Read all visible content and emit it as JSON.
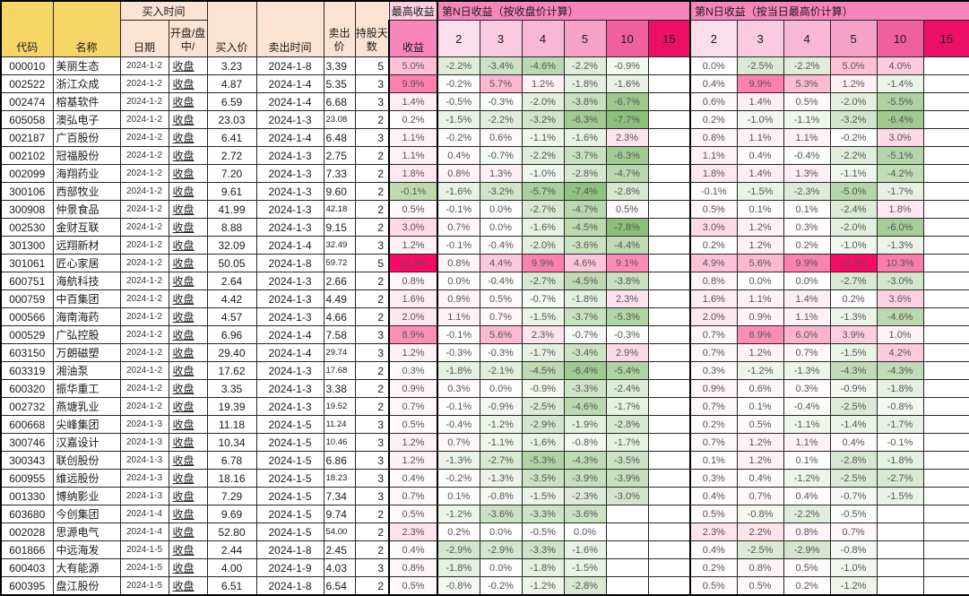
{
  "header": {
    "col_code": "代码",
    "col_name": "名称",
    "buy_time_group": "买入时间",
    "col_date": "日期",
    "col_session": "开盘/盘中/",
    "col_buy_price": "买入价",
    "col_sell_time": "卖出时间",
    "col_sell_price": "卖出价",
    "col_hold_days": "持股天数",
    "max_return_group": "最高收益",
    "col_return": "收益",
    "close_group": "第N日收益（按收盘价计算）",
    "high_group": "第N日收益（按当日最高价计算）",
    "day_cols": [
      "2",
      "3",
      "4",
      "5",
      "10",
      "15"
    ]
  },
  "colors": {
    "header_yellow": "#F6D666",
    "header_peach": "#FBE3D3",
    "header_pink_light": "#FBCFE2",
    "header_pink": "#F886BC",
    "day_col_colors": [
      "#FBDEEC",
      "#FACBE0",
      "#F8B7D4",
      "#F6A2C7",
      "#F0609F",
      "#EB1065"
    ],
    "grid": "#262626"
  },
  "color_scale": {
    "positive_max_color": "#FA0A64",
    "negative_max_color": "#8CBF7B",
    "return_negative_color": "#BFDBAD",
    "positive_limit": 19.3,
    "negative_limit": 7.8
  },
  "rows": [
    {
      "code": "000010",
      "name": "美丽生态",
      "date": "2024-1-2",
      "session": "收盘",
      "buy": "3.23",
      "sell_date": "2024-1-8",
      "sell": "3.39",
      "days": "5",
      "ret": "5.0%",
      "close": [
        "-2.2%",
        "-3.4%",
        "-4.6%",
        "-2.2%",
        "-0.9%",
        ""
      ],
      "high": [
        "0.0%",
        "-2.5%",
        "-2.2%",
        "5.0%",
        "4.0%",
        ""
      ]
    },
    {
      "code": "002522",
      "name": "浙江众成",
      "date": "2024-1-2",
      "session": "收盘",
      "buy": "4.87",
      "sell_date": "2024-1-4",
      "sell": "5.35",
      "days": "3",
      "ret": "9.9%",
      "close": [
        "-0.2%",
        "5.7%",
        "1.2%",
        "-1.8%",
        "-1.6%",
        ""
      ],
      "high": [
        "0.4%",
        "9.9%",
        "5.3%",
        "1.2%",
        "-1.4%",
        ""
      ]
    },
    {
      "code": "002474",
      "name": "榕基软件",
      "date": "2024-1-2",
      "session": "收盘",
      "buy": "6.59",
      "sell_date": "2024-1-4",
      "sell": "6.68",
      "days": "3",
      "ret": "1.4%",
      "close": [
        "-0.5%",
        "-0.3%",
        "-2.0%",
        "-3.8%",
        "-6.7%",
        ""
      ],
      "high": [
        "0.6%",
        "1.4%",
        "0.5%",
        "-2.0%",
        "-5.5%",
        ""
      ]
    },
    {
      "code": "605058",
      "name": "澳弘电子",
      "date": "2024-1-2",
      "session": "收盘",
      "buy": "23.03",
      "sell_date": "2024-1-3",
      "sell": "23.08",
      "days": "2",
      "ret": "0.2%",
      "close": [
        "-1.5%",
        "-2.2%",
        "-3.2%",
        "-6.3%",
        "-7.7%",
        ""
      ],
      "high": [
        "0.2%",
        "-1.0%",
        "-1.1%",
        "-3.2%",
        "-6.4%",
        ""
      ]
    },
    {
      "code": "002187",
      "name": "广百股份",
      "date": "2024-1-2",
      "session": "收盘",
      "buy": "6.41",
      "sell_date": "2024-1-4",
      "sell": "6.48",
      "days": "3",
      "ret": "1.1%",
      "close": [
        "-0.2%",
        "0.6%",
        "-1.1%",
        "-1.6%",
        "2.3%",
        ""
      ],
      "high": [
        "0.8%",
        "1.1%",
        "1.1%",
        "-0.2%",
        "3.0%",
        ""
      ]
    },
    {
      "code": "002102",
      "name": "冠福股份",
      "date": "2024-1-2",
      "session": "收盘",
      "buy": "2.72",
      "sell_date": "2024-1-3",
      "sell": "2.75",
      "days": "2",
      "ret": "1.1%",
      "close": [
        "0.4%",
        "-0.7%",
        "-2.2%",
        "-3.7%",
        "-6.3%",
        ""
      ],
      "high": [
        "1.1%",
        "0.4%",
        "-0.4%",
        "-2.2%",
        "-5.1%",
        ""
      ]
    },
    {
      "code": "002099",
      "name": "海翔药业",
      "date": "2024-1-2",
      "session": "收盘",
      "buy": "7.20",
      "sell_date": "2024-1-3",
      "sell": "7.33",
      "days": "2",
      "ret": "1.8%",
      "close": [
        "0.8%",
        "1.3%",
        "-1.0%",
        "-2.8%",
        "-4.7%",
        ""
      ],
      "high": [
        "1.8%",
        "1.4%",
        "1.3%",
        "-1.1%",
        "-4.2%",
        ""
      ]
    },
    {
      "code": "300106",
      "name": "西部牧业",
      "date": "2024-1-2",
      "session": "收盘",
      "buy": "9.61",
      "sell_date": "2024-1-3",
      "sell": "9.60",
      "days": "2",
      "ret": "-0.1%",
      "close": [
        "-1.6%",
        "-3.2%",
        "-5.7%",
        "-7.4%",
        "-2.8%",
        ""
      ],
      "high": [
        "-0.1%",
        "-1.5%",
        "-2.3%",
        "-5.0%",
        "-1.7%",
        ""
      ]
    },
    {
      "code": "300908",
      "name": "仲景食品",
      "date": "2024-1-2",
      "session": "收盘",
      "buy": "41.99",
      "sell_date": "2024-1-3",
      "sell": "42.18",
      "days": "2",
      "ret": "0.5%",
      "close": [
        "-0.1%",
        "0.0%",
        "-2.7%",
        "-4.7%",
        "0.5%",
        ""
      ],
      "high": [
        "0.5%",
        "0.1%",
        "0.1%",
        "-2.4%",
        "1.8%",
        ""
      ]
    },
    {
      "code": "002530",
      "name": "金财互联",
      "date": "2024-1-2",
      "session": "收盘",
      "buy": "8.88",
      "sell_date": "2024-1-3",
      "sell": "9.15",
      "days": "2",
      "ret": "3.0%",
      "close": [
        "0.7%",
        "0.0%",
        "-1.6%",
        "-4.5%",
        "-7.8%",
        ""
      ],
      "high": [
        "3.0%",
        "1.2%",
        "0.3%",
        "-2.0%",
        "-6.0%",
        ""
      ]
    },
    {
      "code": "301300",
      "name": "远翔新材",
      "date": "2024-1-2",
      "session": "收盘",
      "buy": "32.09",
      "sell_date": "2024-1-4",
      "sell": "32.49",
      "days": "3",
      "ret": "1.2%",
      "close": [
        "-0.1%",
        "-0.4%",
        "-2.0%",
        "-3.6%",
        "-4.4%",
        ""
      ],
      "high": [
        "0.2%",
        "1.2%",
        "0.2%",
        "-1.0%",
        "-1.3%",
        ""
      ]
    },
    {
      "code": "301061",
      "name": "匠心家居",
      "date": "2024-1-2",
      "session": "收盘",
      "buy": "50.05",
      "sell_date": "2024-1-8",
      "sell": "59.72",
      "days": "5",
      "ret": "19.3%",
      "close": [
        "0.8%",
        "4.4%",
        "9.9%",
        "4.6%",
        "9.1%",
        ""
      ],
      "high": [
        "4.9%",
        "5.6%",
        "9.9%",
        "19.3%",
        "10.3%",
        ""
      ]
    },
    {
      "code": "600751",
      "name": "海航科技",
      "date": "2024-1-2",
      "session": "收盘",
      "buy": "2.64",
      "sell_date": "2024-1-3",
      "sell": "2.66",
      "days": "2",
      "ret": "0.8%",
      "close": [
        "0.0%",
        "-0.4%",
        "-2.7%",
        "-4.5%",
        "-3.8%",
        ""
      ],
      "high": [
        "0.8%",
        "0.0%",
        "0.0%",
        "-2.7%",
        "-3.0%",
        ""
      ]
    },
    {
      "code": "000759",
      "name": "中百集团",
      "date": "2024-1-2",
      "session": "收盘",
      "buy": "4.42",
      "sell_date": "2024-1-3",
      "sell": "4.49",
      "days": "2",
      "ret": "1.6%",
      "close": [
        "0.9%",
        "0.5%",
        "-0.7%",
        "-1.8%",
        "2.3%",
        ""
      ],
      "high": [
        "1.6%",
        "1.1%",
        "1.4%",
        "0.2%",
        "3.6%",
        ""
      ]
    },
    {
      "code": "000566",
      "name": "海南海药",
      "date": "2024-1-2",
      "session": "收盘",
      "buy": "4.57",
      "sell_date": "2024-1-3",
      "sell": "4.66",
      "days": "2",
      "ret": "2.0%",
      "close": [
        "1.1%",
        "0.7%",
        "-1.5%",
        "-3.7%",
        "-5.3%",
        ""
      ],
      "high": [
        "2.0%",
        "0.9%",
        "1.1%",
        "-1.3%",
        "-4.6%",
        ""
      ]
    },
    {
      "code": "000529",
      "name": "广弘控股",
      "date": "2024-1-2",
      "session": "收盘",
      "buy": "6.96",
      "sell_date": "2024-1-4",
      "sell": "7.58",
      "days": "3",
      "ret": "8.9%",
      "close": [
        "-0.1%",
        "5.6%",
        "2.3%",
        "-0.7%",
        "-0.3%",
        ""
      ],
      "high": [
        "0.7%",
        "8.9%",
        "6.0%",
        "3.9%",
        "1.0%",
        ""
      ]
    },
    {
      "code": "603150",
      "name": "万朗磁塑",
      "date": "2024-1-2",
      "session": "收盘",
      "buy": "29.40",
      "sell_date": "2024-1-4",
      "sell": "29.74",
      "days": "3",
      "ret": "1.2%",
      "close": [
        "-0.3%",
        "-0.3%",
        "-1.7%",
        "-3.4%",
        "2.9%",
        ""
      ],
      "high": [
        "0.7%",
        "1.2%",
        "0.7%",
        "-1.5%",
        "4.2%",
        ""
      ]
    },
    {
      "code": "603319",
      "name": "湘油泵",
      "date": "2024-1-2",
      "session": "收盘",
      "buy": "17.62",
      "sell_date": "2024-1-3",
      "sell": "17.68",
      "days": "2",
      "ret": "0.3%",
      "close": [
        "-1.8%",
        "-2.1%",
        "-4.5%",
        "-6.4%",
        "-5.4%",
        ""
      ],
      "high": [
        "0.3%",
        "-1.2%",
        "-1.3%",
        "-4.3%",
        "-4.3%",
        ""
      ]
    },
    {
      "code": "600320",
      "name": "振华重工",
      "date": "2024-1-2",
      "session": "收盘",
      "buy": "3.35",
      "sell_date": "2024-1-3",
      "sell": "3.38",
      "days": "2",
      "ret": "0.9%",
      "close": [
        "0.3%",
        "0.0%",
        "-0.9%",
        "-3.3%",
        "-2.4%",
        ""
      ],
      "high": [
        "0.9%",
        "0.6%",
        "0.3%",
        "-0.9%",
        "-1.8%",
        ""
      ]
    },
    {
      "code": "002732",
      "name": "燕塘乳业",
      "date": "2024-1-2",
      "session": "收盘",
      "buy": "19.39",
      "sell_date": "2024-1-3",
      "sell": "19.52",
      "days": "2",
      "ret": "0.7%",
      "close": [
        "-0.1%",
        "-0.9%",
        "-2.5%",
        "-4.6%",
        "-1.7%",
        ""
      ],
      "high": [
        "0.7%",
        "0.1%",
        "-0.4%",
        "-2.5%",
        "-0.8%",
        ""
      ]
    },
    {
      "code": "600668",
      "name": "尖峰集团",
      "date": "2024-1-3",
      "session": "收盘",
      "buy": "11.18",
      "sell_date": "2024-1-5",
      "sell": "11.24",
      "days": "3",
      "ret": "0.5%",
      "close": [
        "-0.4%",
        "-1.2%",
        "-2.9%",
        "-1.9%",
        "-2.8%",
        ""
      ],
      "high": [
        "0.2%",
        "0.5%",
        "-1.1%",
        "-1.4%",
        "-1.7%",
        ""
      ]
    },
    {
      "code": "300746",
      "name": "汉嘉设计",
      "date": "2024-1-3",
      "session": "收盘",
      "buy": "10.34",
      "sell_date": "2024-1-5",
      "sell": "10.46",
      "days": "3",
      "ret": "1.2%",
      "close": [
        "0.7%",
        "-1.1%",
        "-1.6%",
        "-0.8%",
        "-1.7%",
        ""
      ],
      "high": [
        "0.7%",
        "1.2%",
        "1.1%",
        "0.4%",
        "-0.1%",
        ""
      ]
    },
    {
      "code": "300343",
      "name": "联创股份",
      "date": "2024-1-3",
      "session": "收盘",
      "buy": "6.78",
      "sell_date": "2024-1-5",
      "sell": "6.86",
      "days": "3",
      "ret": "1.2%",
      "close": [
        "-1.3%",
        "-2.7%",
        "-5.3%",
        "-4.3%",
        "-3.5%",
        ""
      ],
      "high": [
        "0.1%",
        "1.2%",
        "0.1%",
        "-2.8%",
        "-1.8%",
        ""
      ]
    },
    {
      "code": "600955",
      "name": "维远股份",
      "date": "2024-1-3",
      "session": "收盘",
      "buy": "18.16",
      "sell_date": "2024-1-5",
      "sell": "18.23",
      "days": "3",
      "ret": "0.4%",
      "close": [
        "-0.2%",
        "-1.3%",
        "-3.5%",
        "-3.9%",
        "-3.9%",
        ""
      ],
      "high": [
        "0.3%",
        "0.4%",
        "-1.2%",
        "-2.5%",
        "-2.7%",
        ""
      ]
    },
    {
      "code": "001330",
      "name": "博纳影业",
      "date": "2024-1-3",
      "session": "收盘",
      "buy": "7.29",
      "sell_date": "2024-1-5",
      "sell": "7.34",
      "days": "3",
      "ret": "0.7%",
      "close": [
        "0.1%",
        "-0.8%",
        "-1.5%",
        "-2.3%",
        "-3.0%",
        ""
      ],
      "high": [
        "0.4%",
        "0.7%",
        "0.4%",
        "-0.7%",
        "-1.5%",
        ""
      ]
    },
    {
      "code": "603680",
      "name": "今创集团",
      "date": "2024-1-4",
      "session": "收盘",
      "buy": "9.69",
      "sell_date": "2024-1-5",
      "sell": "9.74",
      "days": "2",
      "ret": "0.5%",
      "close": [
        "-1.2%",
        "-3.6%",
        "-3.3%",
        "-3.6%",
        "",
        ""
      ],
      "high": [
        "0.5%",
        "-0.8%",
        "-2.2%",
        "-0.5%",
        "",
        ""
      ]
    },
    {
      "code": "002028",
      "name": "思源电气",
      "date": "2024-1-4",
      "session": "收盘",
      "buy": "52.80",
      "sell_date": "2024-1-5",
      "sell": "54.00",
      "days": "2",
      "ret": "2.3%",
      "close": [
        "0.2%",
        "0.0%",
        "-0.5%",
        "0.0%",
        "",
        ""
      ],
      "high": [
        "2.3%",
        "2.2%",
        "0.8%",
        "0.7%",
        "",
        ""
      ]
    },
    {
      "code": "601866",
      "name": "中远海发",
      "date": "2024-1-5",
      "session": "收盘",
      "buy": "2.44",
      "sell_date": "2024-1-8",
      "sell": "2.45",
      "days": "2",
      "ret": "0.4%",
      "close": [
        "-2.9%",
        "-2.9%",
        "-3.3%",
        "-1.6%",
        "",
        ""
      ],
      "high": [
        "0.4%",
        "-2.5%",
        "-2.9%",
        "-0.8%",
        "",
        ""
      ]
    },
    {
      "code": "600403",
      "name": "大有能源",
      "date": "2024-1-5",
      "session": "收盘",
      "buy": "4.00",
      "sell_date": "2024-1-9",
      "sell": "4.03",
      "days": "3",
      "ret": "0.8%",
      "close": [
        "-1.8%",
        "0.0%",
        "-1.8%",
        "-1.5%",
        "",
        ""
      ],
      "high": [
        "0.2%",
        "0.8%",
        "0.5%",
        "-1.0%",
        "",
        ""
      ]
    },
    {
      "code": "600395",
      "name": "盘江股份",
      "date": "2024-1-5",
      "session": "收盘",
      "buy": "6.51",
      "sell_date": "2024-1-8",
      "sell": "6.54",
      "days": "2",
      "ret": "0.5%",
      "close": [
        "-0.8%",
        "-0.2%",
        "-1.2%",
        "-2.8%",
        "",
        ""
      ],
      "high": [
        "0.5%",
        "0.5%",
        "0.2%",
        "-1.2%",
        "",
        ""
      ]
    }
  ]
}
